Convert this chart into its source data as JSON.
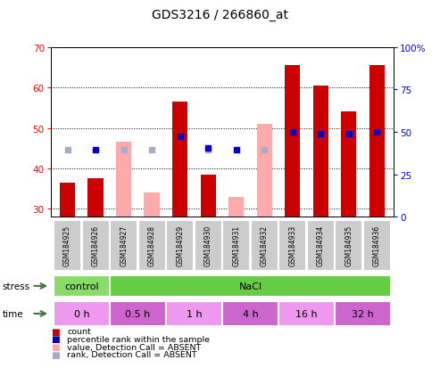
{
  "title": "GDS3216 / 266860_at",
  "samples": [
    "GSM184925",
    "GSM184926",
    "GSM184927",
    "GSM184928",
    "GSM184929",
    "GSM184930",
    "GSM184931",
    "GSM184932",
    "GSM184933",
    "GSM184934",
    "GSM184935",
    "GSM184936"
  ],
  "count_values": [
    36.5,
    37.5,
    null,
    null,
    56.5,
    38.5,
    null,
    null,
    65.5,
    60.5,
    54.0,
    65.5
  ],
  "absent_value_bars": [
    36.5,
    null,
    46.5,
    34.0,
    null,
    null,
    33.0,
    51.0,
    null,
    null,
    null,
    null
  ],
  "rank_absent_values": [
    44.5,
    null,
    44.5,
    44.5,
    null,
    44.5,
    null,
    44.5,
    null,
    null,
    null,
    null
  ],
  "percentile_rank": [
    null,
    44.5,
    null,
    null,
    48.0,
    45.0,
    44.5,
    null,
    49.0,
    48.5,
    48.5,
    49.0
  ],
  "ylim": [
    28,
    70
  ],
  "yticks_left": [
    30,
    40,
    50,
    60,
    70
  ],
  "yticks_right": [
    0,
    25,
    50,
    75,
    100
  ],
  "color_count": "#cc0000",
  "color_absent_value": "#ffaaaa",
  "color_rank_absent": "#aaaacc",
  "color_percentile": "#0000cc",
  "stress_groups": [
    {
      "label": "control",
      "start": 0,
      "end": 2,
      "color": "#88dd66"
    },
    {
      "label": "NaCl",
      "start": 2,
      "end": 12,
      "color": "#66cc44"
    }
  ],
  "time_groups": [
    {
      "label": "0 h",
      "start": 0,
      "end": 2,
      "color": "#ee99ee"
    },
    {
      "label": "0.5 h",
      "start": 2,
      "end": 4,
      "color": "#cc66cc"
    },
    {
      "label": "1 h",
      "start": 4,
      "end": 6,
      "color": "#ee99ee"
    },
    {
      "label": "4 h",
      "start": 6,
      "end": 8,
      "color": "#cc66cc"
    },
    {
      "label": "16 h",
      "start": 8,
      "end": 10,
      "color": "#ee99ee"
    },
    {
      "label": "32 h",
      "start": 10,
      "end": 12,
      "color": "#cc66cc"
    }
  ],
  "legend_items": [
    {
      "label": "count",
      "color": "#cc0000"
    },
    {
      "label": "percentile rank within the sample",
      "color": "#0000cc"
    },
    {
      "label": "value, Detection Call = ABSENT",
      "color": "#ffaaaa"
    },
    {
      "label": "rank, Detection Call = ABSENT",
      "color": "#aaaacc"
    }
  ],
  "bar_width": 0.55,
  "name_box_color": "#cccccc",
  "name_box_edge": "#ffffff"
}
